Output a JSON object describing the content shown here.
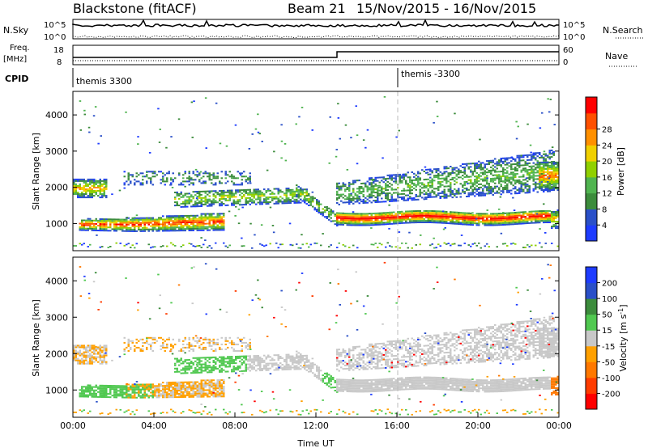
{
  "header": {
    "title": "Blackstone (fitACF)",
    "beam": "Beam 21",
    "date_range": "15/Nov/2015 - 16/Nov/2015"
  },
  "top_panels": {
    "nsky": {
      "label": "N.Sky",
      "ticks": [
        "10^5",
        "10^0"
      ]
    },
    "nsearch": {
      "label": "N.Search",
      "ticks": [
        "10^5",
        "10^0"
      ]
    },
    "freq": {
      "label_top": "Freq.",
      "label_unit": "[MHz]",
      "ticks": [
        "18",
        "8"
      ]
    },
    "nave": {
      "label": "Nave",
      "ticks": [
        "60",
        "0"
      ]
    },
    "cpid": {
      "label": "CPID",
      "mode_1": "themis 3300",
      "mode_2": "themis -3300"
    }
  },
  "colors": {
    "power": [
      "#1e3cff",
      "#2a50c8",
      "#3c8c3c",
      "#50b450",
      "#90d000",
      "#f0d000",
      "#ff9000",
      "#ff5000",
      "#ff0000"
    ],
    "velocity": [
      "#1e3cff",
      "#2a50c8",
      "#3c8c3c",
      "#50c850",
      "#c8c8c8",
      "#ffa000",
      "#ff7800",
      "#ff3c00",
      "#ff0000"
    ]
  },
  "chart_data": [
    {
      "type": "heatmap",
      "name": "power",
      "xlabel": "",
      "ylabel": "Slant Range [km]",
      "yticks": [
        "1000",
        "2000",
        "3000",
        "4000"
      ],
      "ylim": [
        250,
        4650
      ],
      "xlim": [
        0,
        24
      ],
      "colorbar": {
        "label": "Power [dB]",
        "ticks": [
          "4",
          "8",
          "12",
          "16",
          "20",
          "24",
          "28"
        ],
        "range": [
          0,
          32
        ]
      }
    },
    {
      "type": "heatmap",
      "name": "velocity",
      "xlabel": "Time UT",
      "ylabel": "Slant Range [km]",
      "yticks": [
        "1000",
        "2000",
        "3000",
        "4000"
      ],
      "xticks": [
        "00:00",
        "04:00",
        "08:00",
        "12:00",
        "16:00",
        "20:00",
        "00:00"
      ],
      "ylim": [
        250,
        4650
      ],
      "xlim": [
        0,
        24
      ],
      "colorbar": {
        "label": "Velocity [m s^-1]",
        "ticks": [
          "200",
          "100",
          "50",
          "15",
          "-15",
          "-50",
          "-100",
          "-200"
        ]
      }
    }
  ]
}
